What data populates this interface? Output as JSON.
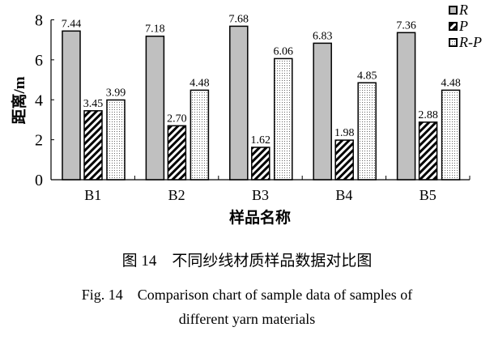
{
  "chart_data": {
    "type": "bar",
    "categories": [
      "B1",
      "B2",
      "B3",
      "B4",
      "B5"
    ],
    "series": [
      {
        "name": "R",
        "values": [
          7.44,
          7.18,
          7.68,
          6.83,
          7.36
        ],
        "pattern": "solid-gray",
        "color": "#c0c0c0"
      },
      {
        "name": "P",
        "values": [
          3.45,
          2.7,
          1.62,
          1.98,
          2.88
        ],
        "pattern": "diagonal-hatch",
        "color": "#000000"
      },
      {
        "name": "R-P",
        "values": [
          3.99,
          4.48,
          6.06,
          4.85,
          4.48
        ],
        "pattern": "dotted",
        "color": "#ffffff"
      }
    ],
    "data_labels": [
      [
        "7.44",
        "7.18",
        "7.68",
        "6.83",
        "7.36"
      ],
      [
        "3.45",
        "2.70",
        "1.62",
        "1.98",
        "2.88"
      ],
      [
        "3.99",
        "4.48",
        "6.06",
        "4.85",
        "4.48"
      ]
    ],
    "xlabel": "样品名称",
    "ylabel": "距离/m",
    "ylim": [
      0,
      8
    ],
    "yticks": [
      "0",
      "2",
      "4",
      "6",
      "8"
    ],
    "grid": false,
    "legend_position": "top-right"
  },
  "caption": {
    "cn": "图 14　不同纱线材质样品数据对比图",
    "en_line1": "Fig. 14　Comparison chart of sample data of samples of",
    "en_line2": "different yarn materials"
  }
}
